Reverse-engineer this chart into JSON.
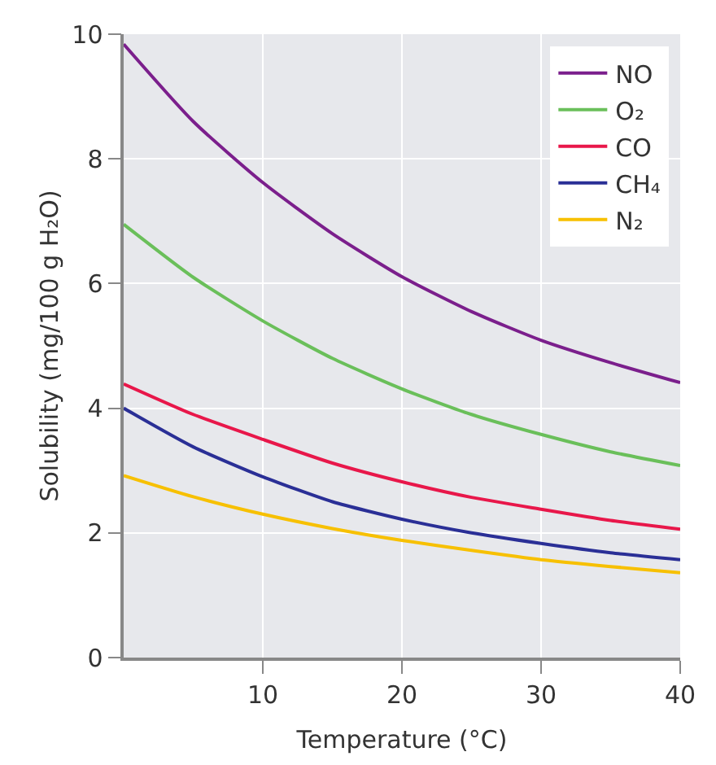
{
  "chart_data": {
    "type": "line",
    "xlabel": "Temperature (°C)",
    "ylabel": "Solubility (mg/100 g H₂O)",
    "x": [
      0,
      5,
      10,
      15,
      20,
      25,
      30,
      35,
      40
    ],
    "series": [
      {
        "name": "NO",
        "color": "#7b1f8c",
        "values": [
          9.84,
          8.6,
          7.62,
          6.8,
          6.11,
          5.55,
          5.09,
          4.73,
          4.41
        ]
      },
      {
        "name": "O₂",
        "color": "#6abf5a",
        "values": [
          6.95,
          6.1,
          5.4,
          4.8,
          4.31,
          3.9,
          3.58,
          3.3,
          3.08
        ]
      },
      {
        "name": "CO",
        "color": "#e8174a",
        "values": [
          4.39,
          3.9,
          3.5,
          3.12,
          2.82,
          2.57,
          2.38,
          2.2,
          2.06
        ]
      },
      {
        "name": "CH₄",
        "color": "#2a2f96",
        "values": [
          4.0,
          3.38,
          2.9,
          2.5,
          2.22,
          2.0,
          1.83,
          1.68,
          1.57
        ]
      },
      {
        "name": "N₂",
        "color": "#f7c000",
        "values": [
          2.92,
          2.58,
          2.3,
          2.07,
          1.88,
          1.72,
          1.57,
          1.46,
          1.36
        ]
      }
    ],
    "xlim": [
      0,
      40
    ],
    "xticks": [
      10,
      20,
      30,
      40
    ],
    "ylim": [
      0,
      10
    ],
    "yticks": [
      0,
      2,
      4,
      6,
      8,
      10
    ],
    "grid": true,
    "legend": "top right",
    "marker": "none",
    "line_style": "solid"
  }
}
